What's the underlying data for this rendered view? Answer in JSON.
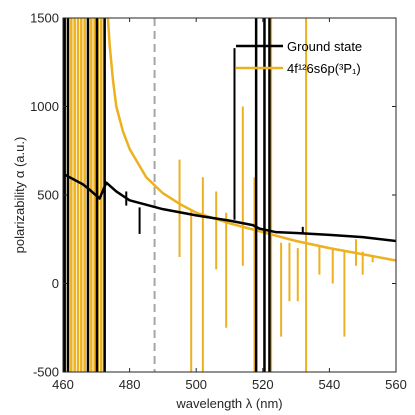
{
  "chart_data": {
    "type": "line",
    "xlabel": "wavelength λ (nm)",
    "ylabel": "polarizability α (a.u.)",
    "xlim": [
      460,
      560
    ],
    "ylim": [
      -500,
      1500
    ],
    "xticks": [
      460,
      480,
      500,
      520,
      540,
      560
    ],
    "yticks": [
      -500,
      0,
      500,
      1000,
      1500
    ],
    "grid": false,
    "legend_position": "top-right",
    "reference_line": {
      "x": 487.5,
      "style": "dashed",
      "color": "#a6a6a6"
    },
    "series": [
      {
        "name": "Ground state",
        "color": "#000000",
        "baseline": {
          "x": [
            460,
            466,
            468,
            471,
            473,
            476,
            480,
            490,
            500,
            510,
            517,
            519,
            524,
            530,
            540,
            550,
            560
          ],
          "y": [
            620,
            560,
            530,
            480,
            570,
            520,
            470,
            420,
            385,
            355,
            330,
            310,
            290,
            285,
            275,
            262,
            240
          ]
        },
        "resonances": [
          460.5,
          461.5,
          467.5,
          470.2,
          472.5,
          518,
          520.5,
          522
        ],
        "spikes": [
          {
            "x": 479,
            "y0": 440,
            "y1": 520
          },
          {
            "x": 483,
            "y0": 280,
            "y1": 430
          },
          {
            "x": 511.5,
            "y0": 360,
            "y1": 1330
          },
          {
            "x": 532,
            "y0": 280,
            "y1": 320
          }
        ]
      },
      {
        "name": "4f¹²6s6p(³P₁)",
        "color": "#EDB120",
        "baseline": {
          "x": [
            473.5,
            474,
            475,
            476,
            478,
            480,
            485,
            490,
            495,
            500,
            510,
            520,
            530,
            540,
            550,
            560
          ],
          "y": [
            1500,
            1350,
            1150,
            1000,
            860,
            760,
            600,
            510,
            450,
            400,
            340,
            290,
            240,
            200,
            165,
            130
          ]
        },
        "resonances": [
          461.5,
          462.5,
          463.5,
          464.5,
          465.5,
          466.5,
          467.5,
          468.5,
          469.5,
          470.5,
          471.5,
          472.5
        ],
        "spikes": [
          {
            "x": 495,
            "y0": 150,
            "y1": 700
          },
          {
            "x": 498.5,
            "y0": -500,
            "y1": 420
          },
          {
            "x": 502,
            "y0": -500,
            "y1": 600
          },
          {
            "x": 506,
            "y0": 80,
            "y1": 520
          },
          {
            "x": 509,
            "y0": -250,
            "y1": 400
          },
          {
            "x": 514,
            "y0": 100,
            "y1": 1000
          },
          {
            "x": 517.5,
            "y0": -500,
            "y1": 600
          },
          {
            "x": 520.5,
            "y0": -500,
            "y1": 1500
          },
          {
            "x": 522.5,
            "y0": -500,
            "y1": 1500
          },
          {
            "x": 525.5,
            "y0": -300,
            "y1": 230
          },
          {
            "x": 528,
            "y0": -100,
            "y1": 230
          },
          {
            "x": 530.5,
            "y0": -100,
            "y1": 200
          },
          {
            "x": 533,
            "y0": -500,
            "y1": 1500
          },
          {
            "x": 537,
            "y0": 50,
            "y1": 210
          },
          {
            "x": 541,
            "y0": 0,
            "y1": 200
          },
          {
            "x": 544.5,
            "y0": -300,
            "y1": 180
          },
          {
            "x": 548,
            "y0": 100,
            "y1": 250
          },
          {
            "x": 550,
            "y0": 50,
            "y1": 180
          },
          {
            "x": 553,
            "y0": 120,
            "y1": 160
          }
        ]
      }
    ]
  }
}
